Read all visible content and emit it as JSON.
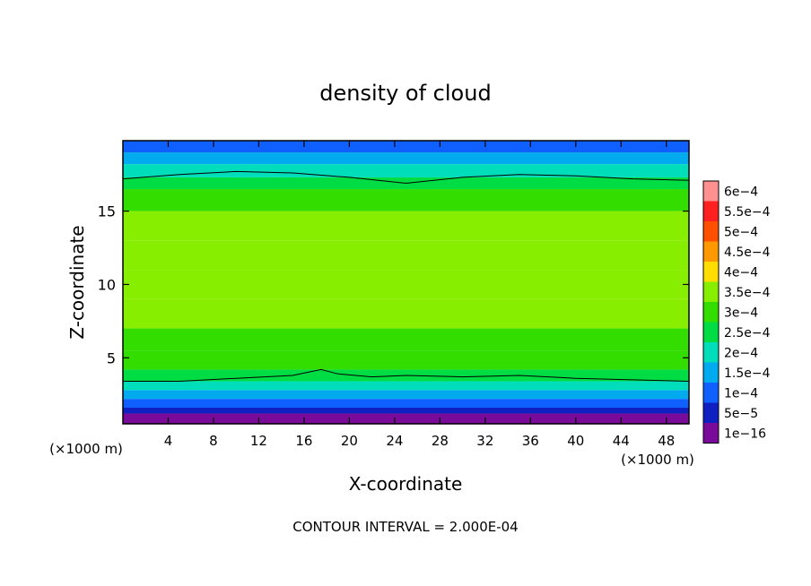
{
  "chart_data": {
    "type": "heatmap",
    "title": "density of cloud",
    "xlabel": "X-coordinate",
    "ylabel": "Z-coordinate",
    "x_unit_left": "(×1000 m)",
    "x_unit_right": "(×1000 m)",
    "xlim": [
      0,
      50
    ],
    "ylim": [
      0.5,
      19.8
    ],
    "x_ticks": [
      4,
      8,
      12,
      16,
      20,
      24,
      28,
      32,
      36,
      40,
      44,
      48
    ],
    "y_ticks": [
      5,
      10,
      15
    ],
    "footer": "CONTOUR INTERVAL = 2.000E-04",
    "colorbar": {
      "labels": [
        "6e−4",
        "5.5e−4",
        "5e−4",
        "4.5e−4",
        "4e−4",
        "3.5e−4",
        "3e−4",
        "2.5e−4",
        "2e−4",
        "1.5e−4",
        "1e−4",
        "5e−5",
        "1e−16"
      ],
      "colors": [
        "#ff9090",
        "#ff2020",
        "#ff5000",
        "#ff9900",
        "#ffdd00",
        "#88ee00",
        "#33dd00",
        "#00dd44",
        "#00ddbb",
        "#00aaee",
        "#1060ff",
        "#1020c0",
        "#7a0a9a"
      ]
    },
    "vertical_profile": [
      {
        "z": 0.5,
        "value": 0.0
      },
      {
        "z": 1.2,
        "value": 2e-05
      },
      {
        "z": 1.6,
        "value": 6e-05
      },
      {
        "z": 2.2,
        "value": 0.0001
      },
      {
        "z": 2.8,
        "value": 0.00014
      },
      {
        "z": 3.4,
        "value": 0.00019
      },
      {
        "z": 4.2,
        "value": 0.00023
      },
      {
        "z": 5.5,
        "value": 0.00028
      },
      {
        "z": 7.0,
        "value": 0.00031
      },
      {
        "z": 9.0,
        "value": 0.00033
      },
      {
        "z": 11.0,
        "value": 0.00032
      },
      {
        "z": 13.0,
        "value": 0.00031
      },
      {
        "z": 15.0,
        "value": 0.0003
      },
      {
        "z": 16.5,
        "value": 0.00027
      },
      {
        "z": 17.3,
        "value": 0.00022
      },
      {
        "z": 18.2,
        "value": 0.00014
      },
      {
        "z": 19.0,
        "value": 8e-05
      },
      {
        "z": 19.8,
        "value": 4e-05
      }
    ],
    "contour_upper": [
      {
        "x": 0,
        "z": 17.2
      },
      {
        "x": 5,
        "z": 17.5
      },
      {
        "x": 10,
        "z": 17.7
      },
      {
        "x": 15,
        "z": 17.6
      },
      {
        "x": 20,
        "z": 17.3
      },
      {
        "x": 25,
        "z": 16.9
      },
      {
        "x": 30,
        "z": 17.3
      },
      {
        "x": 35,
        "z": 17.5
      },
      {
        "x": 40,
        "z": 17.4
      },
      {
        "x": 45,
        "z": 17.2
      },
      {
        "x": 50,
        "z": 17.1
      }
    ],
    "contour_lower": [
      {
        "x": 0,
        "z": 3.4
      },
      {
        "x": 5,
        "z": 3.4
      },
      {
        "x": 10,
        "z": 3.6
      },
      {
        "x": 15,
        "z": 3.8
      },
      {
        "x": 17.5,
        "z": 4.2
      },
      {
        "x": 19,
        "z": 3.9
      },
      {
        "x": 22,
        "z": 3.7
      },
      {
        "x": 25,
        "z": 3.8
      },
      {
        "x": 30,
        "z": 3.7
      },
      {
        "x": 35,
        "z": 3.8
      },
      {
        "x": 40,
        "z": 3.6
      },
      {
        "x": 45,
        "z": 3.5
      },
      {
        "x": 50,
        "z": 3.4
      }
    ]
  }
}
